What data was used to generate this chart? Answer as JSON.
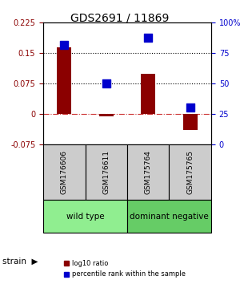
{
  "title": "GDS2691 / 11869",
  "samples": [
    "GSM176606",
    "GSM176611",
    "GSM175764",
    "GSM175765"
  ],
  "log10_ratio": [
    0.165,
    -0.005,
    0.1,
    -0.04
  ],
  "percentile_rank": [
    82,
    50,
    88,
    30
  ],
  "groups": [
    {
      "label": "wild type",
      "samples": [
        0,
        1
      ],
      "color": "#90ee90"
    },
    {
      "label": "dominant negative",
      "samples": [
        2,
        3
      ],
      "color": "#66cc66"
    }
  ],
  "group_label": "strain",
  "ylim_left": [
    -0.075,
    0.225
  ],
  "ylim_right": [
    0,
    100
  ],
  "yticks_left": [
    -0.075,
    0,
    0.075,
    0.15,
    0.225
  ],
  "yticks_right": [
    0,
    25,
    50,
    75,
    100
  ],
  "ytick_labels_left": [
    "-0.075",
    "0",
    "0.075",
    "0.15",
    "0.225"
  ],
  "ytick_labels_right": [
    "0",
    "25",
    "50",
    "75",
    "100%"
  ],
  "hlines": [
    0.075,
    0.15
  ],
  "bar_color": "#8B0000",
  "dot_color": "#0000CD",
  "zero_line_color": "#cc3333",
  "hline_color": "#000000",
  "bar_width": 0.35,
  "dot_size": 50
}
